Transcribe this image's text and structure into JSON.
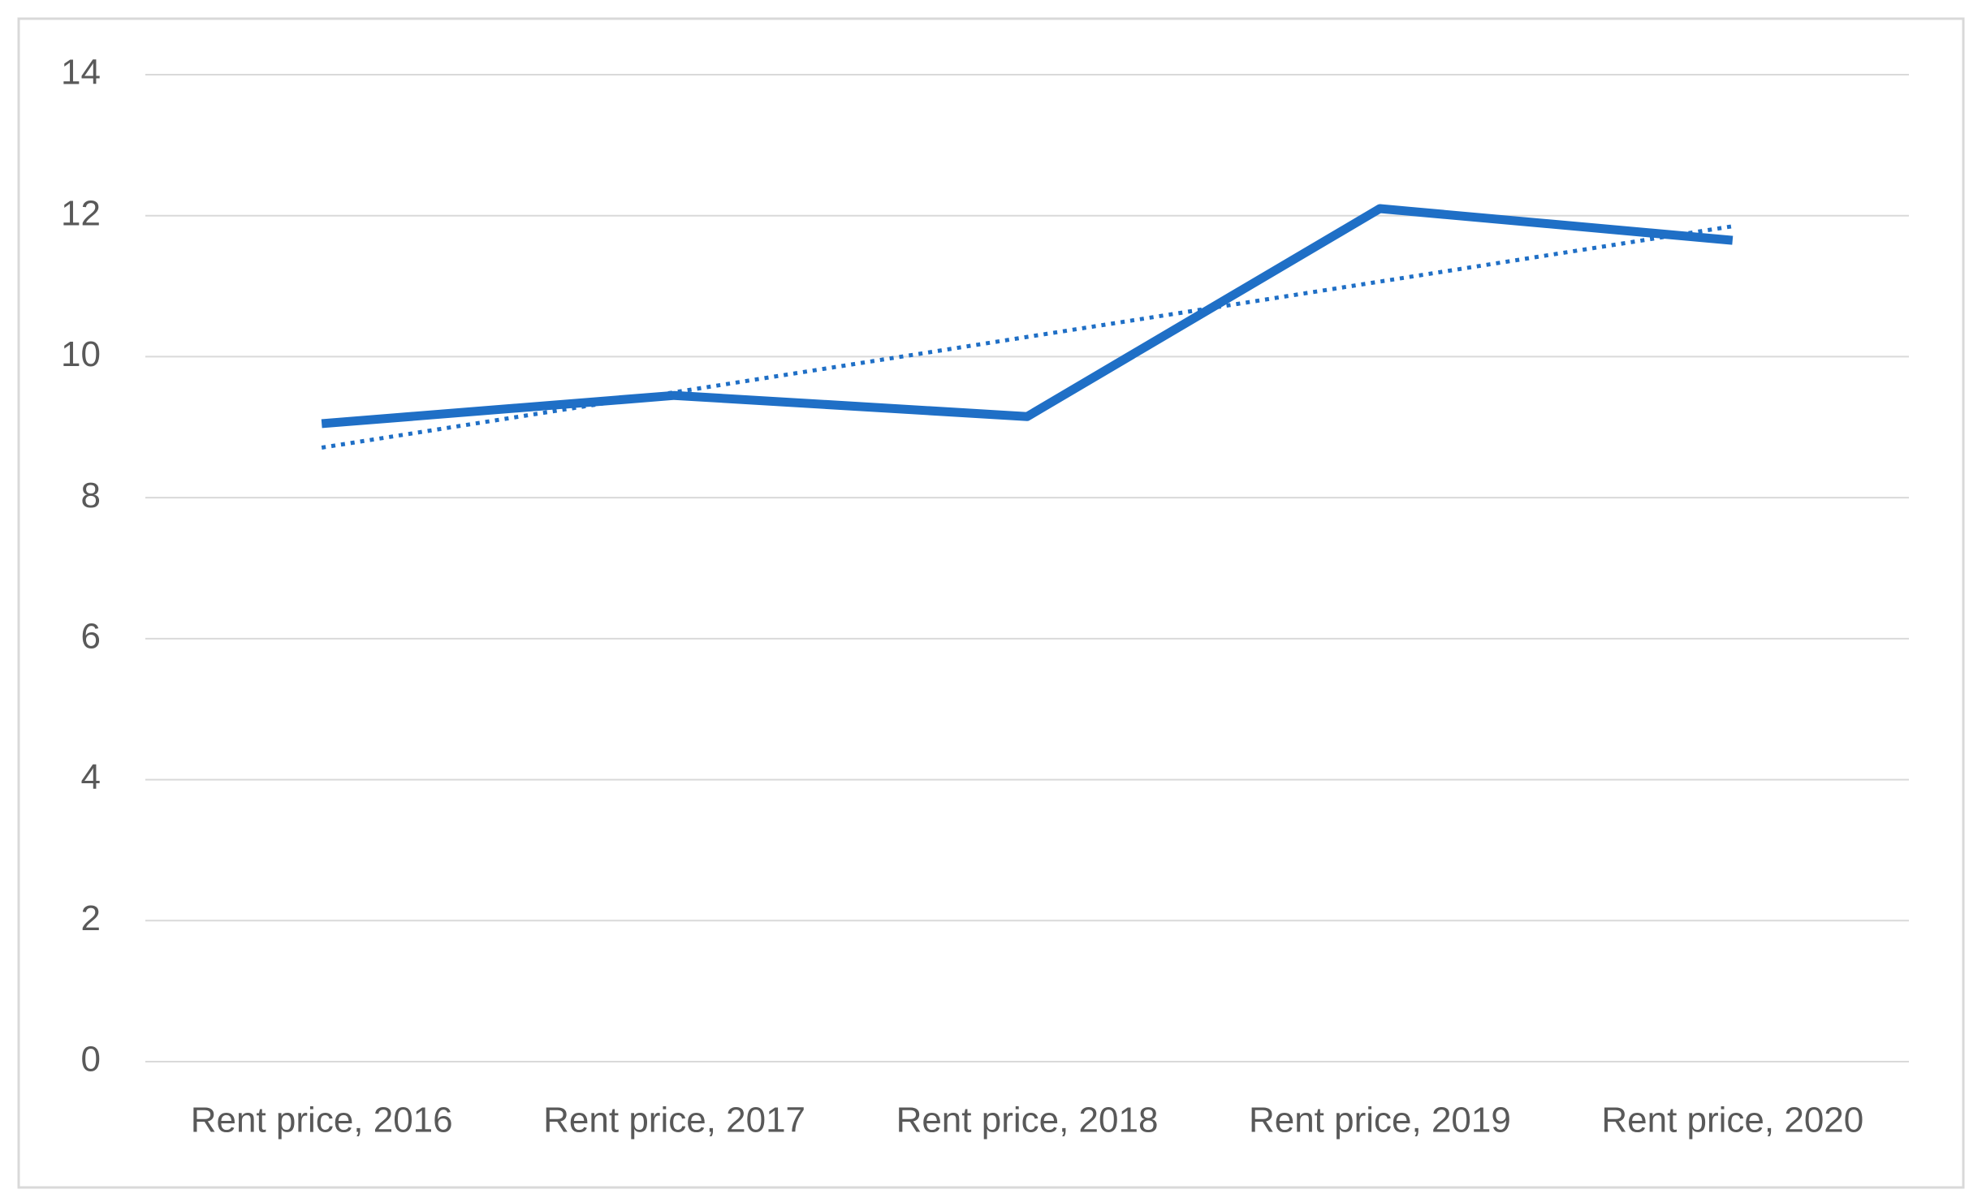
{
  "chart_data": {
    "type": "line",
    "categories": [
      "Rent price, 2016",
      "Rent price, 2017",
      "Rent price, 2018",
      "Rent price, 2019",
      "Rent price, 2020"
    ],
    "series": [
      {
        "color": "#1f6fc6",
        "values": [
          9.05,
          9.45,
          9.15,
          12.1,
          11.65
        ]
      }
    ],
    "ylim": [
      0,
      14
    ],
    "yticks": [
      0,
      2,
      4,
      6,
      8,
      10,
      12,
      14
    ],
    "grid": true,
    "trendline": "linear"
  }
}
